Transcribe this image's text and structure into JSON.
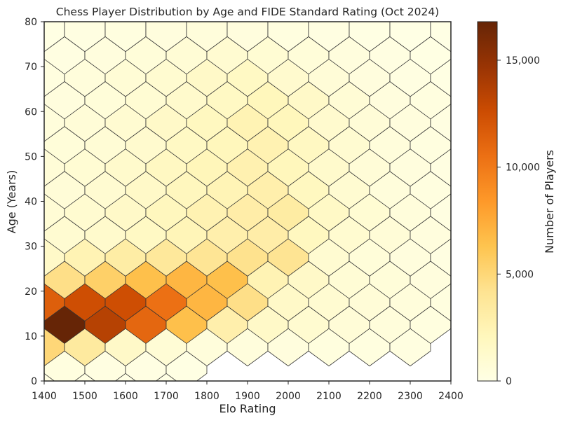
{
  "chart_data": {
    "type": "hexbin",
    "title": "Chess Player Distribution by Age and FIDE Standard Rating (Oct 2024)",
    "xlabel": "Elo Rating",
    "ylabel": "Age (Years)",
    "xlim": [
      1400,
      2400
    ],
    "ylim": [
      0,
      80
    ],
    "xticks": [
      1400,
      1500,
      1600,
      1700,
      1800,
      1900,
      2000,
      2100,
      2200,
      2300,
      2400
    ],
    "yticks": [
      0,
      10,
      20,
      30,
      40,
      50,
      60,
      70,
      80
    ],
    "colorbar": {
      "label": "Number of Players",
      "min": 0,
      "max": 16800,
      "ticks": [
        0,
        5000,
        10000,
        15000
      ],
      "tick_labels": [
        "0",
        "5,000",
        "10,000",
        "15,000"
      ],
      "colormap": [
        "#ffffe5",
        "#fff7bc",
        "#fee391",
        "#fec44f",
        "#fe9929",
        "#ec7014",
        "#cc4c02",
        "#993404",
        "#662506"
      ]
    },
    "hex_grid": {
      "x_step": 100,
      "y_step": 10,
      "full_rows_y": [
        0,
        10,
        20,
        30,
        40,
        50,
        60,
        70,
        80
      ],
      "full_rows_x": [
        1400,
        1500,
        1600,
        1700,
        1800,
        1900,
        2000,
        2100,
        2200,
        2300,
        2400
      ],
      "offset_rows_y": [
        5,
        15,
        25,
        35,
        45,
        55,
        65,
        75
      ],
      "offset_rows_x": [
        1450,
        1550,
        1650,
        1750,
        1850,
        1950,
        2050,
        2150,
        2250,
        2350
      ]
    },
    "counts": [
      {
        "y": 0,
        "values": [
          150,
          90,
          50,
          30,
          0,
          0,
          0,
          0,
          0,
          0,
          0
        ]
      },
      {
        "y": 5,
        "values": [
          300,
          200,
          150,
          100,
          0,
          0,
          0,
          0,
          0,
          0
        ]
      },
      {
        "y": 10,
        "values": [
          5000,
          3500,
          1500,
          800,
          500,
          450,
          400,
          350,
          300,
          250,
          0
        ]
      },
      {
        "y": 15,
        "values": [
          16800,
          13500,
          11000,
          6500,
          2900,
          1500,
          1100,
          700,
          500,
          300
        ]
      },
      {
        "y": 20,
        "values": [
          11500,
          12500,
          12500,
          10500,
          7000,
          4500,
          1500,
          1000,
          700,
          500,
          300
        ]
      },
      {
        "y": 25,
        "values": [
          4500,
          5500,
          6500,
          7000,
          6500,
          2500,
          1500,
          800,
          600,
          400
        ]
      },
      {
        "y": 30,
        "values": [
          1500,
          2500,
          3200,
          3700,
          4000,
          4300,
          4100,
          1000,
          600,
          400,
          200
        ]
      },
      {
        "y": 35,
        "values": [
          1000,
          1300,
          1700,
          2300,
          2900,
          3100,
          1900,
          1100,
          700,
          400
        ]
      },
      {
        "y": 40,
        "values": [
          800,
          1100,
          1500,
          2000,
          2600,
          3100,
          3300,
          1600,
          900,
          500,
          200
        ]
      },
      {
        "y": 45,
        "values": [
          700,
          1000,
          1500,
          2000,
          2400,
          2900,
          1900,
          1000,
          500,
          300
        ]
      },
      {
        "y": 50,
        "values": [
          700,
          900,
          1300,
          1800,
          2200,
          2700,
          2100,
          1300,
          700,
          400,
          200
        ]
      },
      {
        "y": 55,
        "values": [
          600,
          800,
          1200,
          1700,
          2100,
          2600,
          1800,
          1000,
          500,
          300
        ]
      },
      {
        "y": 60,
        "values": [
          500,
          700,
          1000,
          1500,
          1900,
          2500,
          2100,
          1200,
          700,
          400,
          200
        ]
      },
      {
        "y": 65,
        "values": [
          400,
          600,
          900,
          1300,
          1700,
          2100,
          1500,
          800,
          400,
          300
        ]
      },
      {
        "y": 70,
        "values": [
          300,
          500,
          800,
          1100,
          1500,
          1700,
          1200,
          700,
          400,
          200,
          100
        ]
      },
      {
        "y": 75,
        "values": [
          200,
          400,
          600,
          800,
          1000,
          900,
          600,
          400,
          200,
          100
        ]
      },
      {
        "y": 80,
        "values": [
          100,
          200,
          300,
          400,
          500,
          400,
          300,
          200,
          100,
          50,
          50
        ]
      }
    ]
  }
}
